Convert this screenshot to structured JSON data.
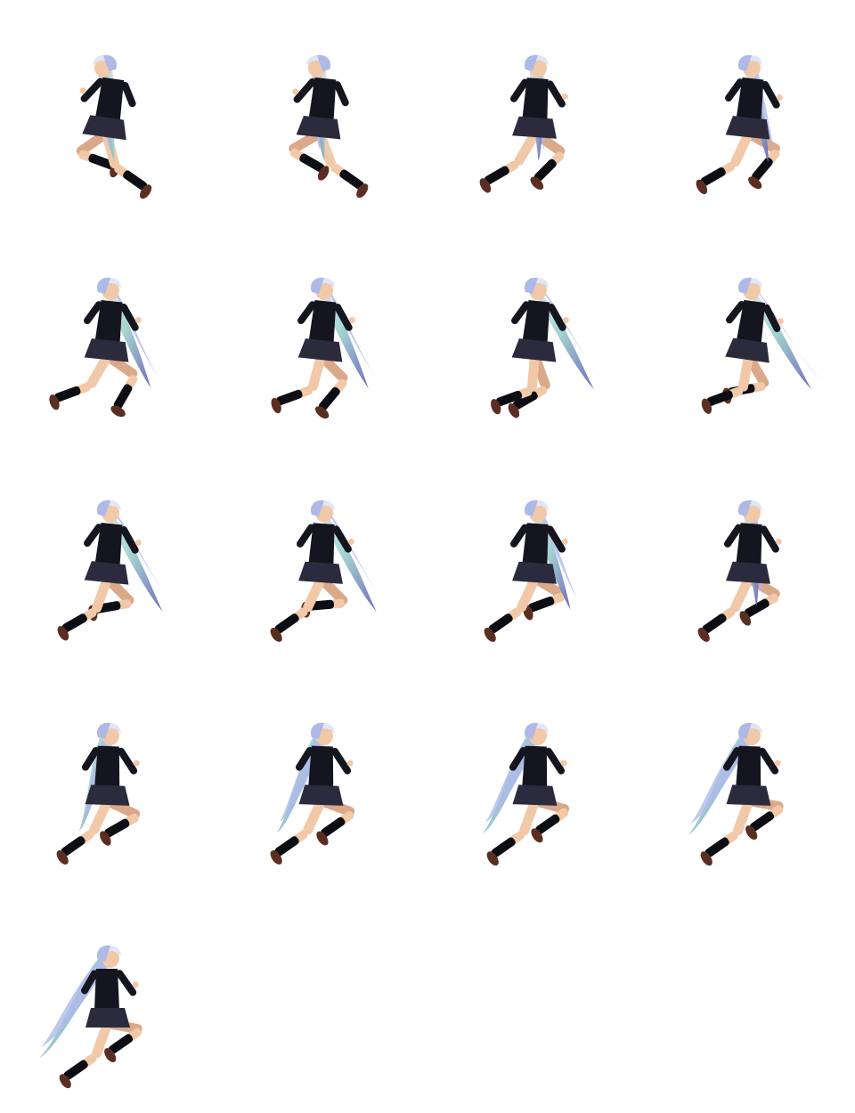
{
  "sprite_sheet": {
    "columns": 4,
    "rows": 5,
    "frame_count": 17,
    "background": "#ffffff",
    "palette": {
      "hair_light": "#dfe6f7",
      "hair_mid": "#aeb9e8",
      "hair_dark": "#6a63b8",
      "hair_teal": "#9fd3cf",
      "uniform": "#15151f",
      "uniform_shade": "#2b2b3d",
      "skin": "#f2c9a8",
      "skin_shade": "#d9a98a",
      "sock": "#0d0d14",
      "shoe": "#5a2f22"
    },
    "frames": [
      {
        "pose": "run-away-1",
        "facing": "left"
      },
      {
        "pose": "run-away-2",
        "facing": "left"
      },
      {
        "pose": "run-turn-1",
        "facing": "right"
      },
      {
        "pose": "run-turn-2",
        "facing": "right"
      },
      {
        "pose": "run-1",
        "facing": "right"
      },
      {
        "pose": "run-2",
        "facing": "right"
      },
      {
        "pose": "run-3",
        "facing": "right"
      },
      {
        "pose": "run-4",
        "facing": "right"
      },
      {
        "pose": "leap-1",
        "facing": "right"
      },
      {
        "pose": "leap-2",
        "facing": "right"
      },
      {
        "pose": "leap-3",
        "facing": "right"
      },
      {
        "pose": "leap-4",
        "facing": "right"
      },
      {
        "pose": "lunge-1",
        "facing": "right"
      },
      {
        "pose": "lunge-2",
        "facing": "right"
      },
      {
        "pose": "lunge-3",
        "facing": "right"
      },
      {
        "pose": "lunge-4",
        "facing": "right"
      },
      {
        "pose": "lunge-point",
        "facing": "right"
      }
    ]
  }
}
